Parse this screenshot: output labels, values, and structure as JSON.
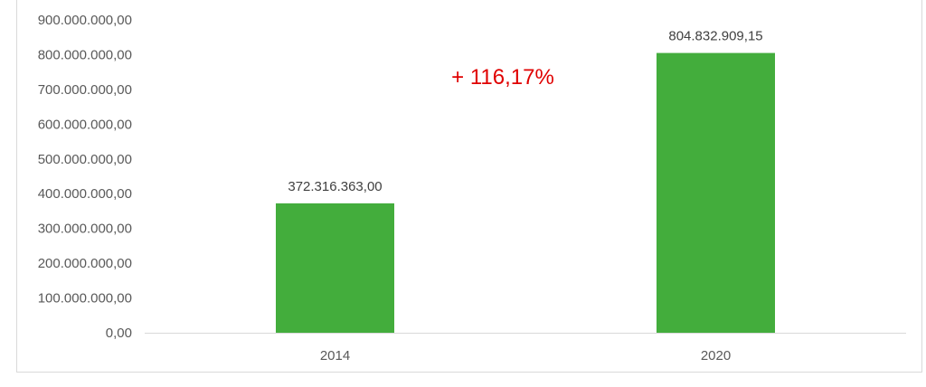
{
  "chart_data": {
    "type": "bar",
    "categories": [
      "2014",
      "2020"
    ],
    "values": [
      372316363.0,
      804832909.15
    ],
    "value_labels": [
      "372.316.363,00",
      "804.832.909,15"
    ],
    "ylim": [
      0,
      900000000
    ],
    "yticks": [
      0,
      100000000,
      200000000,
      300000000,
      400000000,
      500000000,
      600000000,
      700000000,
      800000000,
      900000000
    ],
    "ytick_labels": [
      "0,00",
      "100.000.000,00",
      "200.000.000,00",
      "300.000.000,00",
      "400.000.000,00",
      "500.000.000,00",
      "600.000.000,00",
      "700.000.000,00",
      "800.000.000,00",
      "900.000.000,00"
    ],
    "grid": false,
    "legend": "none",
    "annotation": "+ 116,17%",
    "bar_color": "#43ad3c",
    "annotation_color": "#e00000"
  }
}
